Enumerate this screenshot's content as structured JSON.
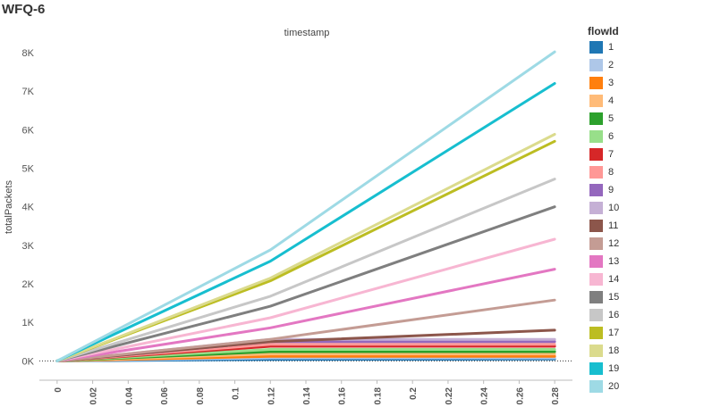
{
  "page": {
    "title": "WFQ-6"
  },
  "chart_data": {
    "type": "line",
    "title": "",
    "xlabel": "timestamp",
    "ylabel": "totalPackets",
    "x_ticks": [
      "0",
      "0.02",
      "0.04",
      "0.06",
      "0.08",
      "0.1",
      "0.12",
      "0.14",
      "0.16",
      "0.18",
      "0.2",
      "0.22",
      "0.24",
      "0.26",
      "0.28"
    ],
    "y_ticks": [
      "0K",
      "1K",
      "2K",
      "3K",
      "4K",
      "5K",
      "6K",
      "7K",
      "8K"
    ],
    "xlim": [
      -0.01,
      0.29
    ],
    "ylim": [
      -500,
      8300
    ],
    "grid": false,
    "zero_line": true,
    "legend": {
      "title": "flowId",
      "position": "right"
    },
    "x": [
      0,
      0.12,
      0.28
    ],
    "series": [
      {
        "name": "1",
        "color": "#1f77b4",
        "values": [
          0,
          40,
          50
        ]
      },
      {
        "name": "2",
        "color": "#aec7e8",
        "values": [
          0,
          80,
          80
        ]
      },
      {
        "name": "3",
        "color": "#ff7f0e",
        "values": [
          0,
          120,
          120
        ]
      },
      {
        "name": "4",
        "color": "#ffbb78",
        "values": [
          0,
          180,
          180
        ]
      },
      {
        "name": "5",
        "color": "#2ca02c",
        "values": [
          0,
          240,
          240
        ]
      },
      {
        "name": "6",
        "color": "#98df8a",
        "values": [
          0,
          300,
          300
        ]
      },
      {
        "name": "7",
        "color": "#d62728",
        "values": [
          0,
          380,
          380
        ]
      },
      {
        "name": "8",
        "color": "#ff9896",
        "values": [
          0,
          430,
          430
        ]
      },
      {
        "name": "9",
        "color": "#9467bd",
        "values": [
          0,
          500,
          500
        ]
      },
      {
        "name": "10",
        "color": "#c5b0d5",
        "values": [
          0,
          560,
          560
        ]
      },
      {
        "name": "11",
        "color": "#8c564b",
        "values": [
          0,
          500,
          800
        ]
      },
      {
        "name": "12",
        "color": "#c49c94",
        "values": [
          0,
          560,
          1580
        ]
      },
      {
        "name": "13",
        "color": "#e377c2",
        "values": [
          0,
          860,
          2380
        ]
      },
      {
        "name": "14",
        "color": "#f7b6d2",
        "values": [
          0,
          1120,
          3160
        ]
      },
      {
        "name": "15",
        "color": "#7f7f7f",
        "values": [
          0,
          1420,
          4000
        ]
      },
      {
        "name": "16",
        "color": "#c7c7c7",
        "values": [
          0,
          1680,
          4720
        ]
      },
      {
        "name": "17",
        "color": "#bcbd22",
        "values": [
          0,
          2080,
          5700
        ]
      },
      {
        "name": "18",
        "color": "#dbdb8d",
        "values": [
          0,
          2150,
          5880
        ]
      },
      {
        "name": "19",
        "color": "#17becf",
        "values": [
          0,
          2590,
          7200
        ]
      },
      {
        "name": "20",
        "color": "#9edae5",
        "values": [
          0,
          2880,
          8020
        ]
      }
    ]
  }
}
